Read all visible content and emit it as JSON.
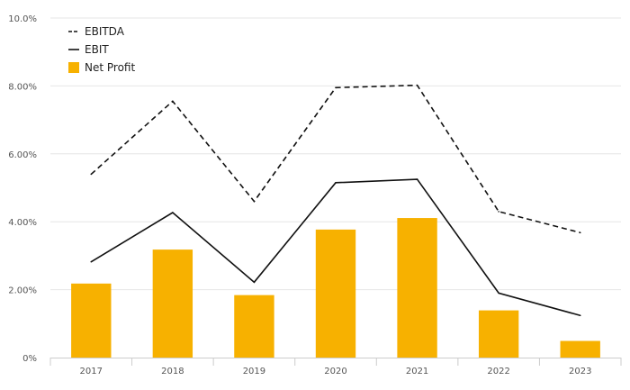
{
  "chart_data": {
    "type": "bar",
    "categories": [
      "2017",
      "2018",
      "2019",
      "2020",
      "2021",
      "2022",
      "2023"
    ],
    "series": [
      {
        "name": "EBITDA",
        "type": "line",
        "style": "dashed",
        "color": "#111111",
        "values": [
          5.4,
          7.55,
          4.6,
          7.95,
          8.02,
          4.3,
          3.68
        ]
      },
      {
        "name": "EBIT",
        "type": "line",
        "style": "solid",
        "color": "#111111",
        "values": [
          2.82,
          4.27,
          2.22,
          5.15,
          5.25,
          1.9,
          1.24
        ]
      },
      {
        "name": "Net Profit",
        "type": "bar",
        "color": "#f7b100",
        "values": [
          2.18,
          3.18,
          1.84,
          3.77,
          4.11,
          1.39,
          0.49
        ]
      }
    ],
    "ylim": [
      0,
      10
    ],
    "yticks": [
      "0%",
      "2.00%",
      "4.00%",
      "6.00%",
      "8.00%",
      "10.0%"
    ],
    "yticks_values": [
      0,
      2,
      4,
      6,
      8,
      10
    ],
    "title": "",
    "xlabel": "",
    "ylabel": "",
    "grid": true,
    "legend": {
      "position": "top-left",
      "entries": [
        "EBITDA",
        "EBIT",
        "Net Profit"
      ]
    }
  }
}
